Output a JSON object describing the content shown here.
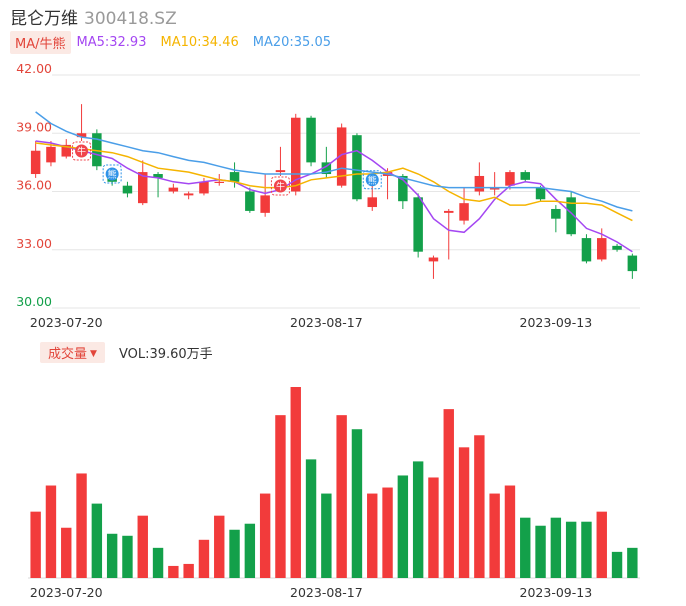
{
  "header": {
    "name": "昆仑万维",
    "code": "300418.SZ"
  },
  "ma_legend": {
    "tag": "MA/牛熊",
    "items": [
      {
        "label": "MA5:32.93",
        "color": "#a447f2"
      },
      {
        "label": "MA10:34.46",
        "color": "#f5b400"
      },
      {
        "label": "MA20:35.05",
        "color": "#4a9ee8"
      }
    ]
  },
  "volume_legend": {
    "tag": "成交量",
    "text": "VOL:39.60万手"
  },
  "colors": {
    "up": "#f23b3b",
    "down": "#13a04a",
    "price_axis": "#e2453a",
    "price_axis_low": "#13a04a",
    "grid": "#e6e6e6"
  },
  "markers": [
    {
      "type": "bull",
      "text": "牛",
      "index": 3
    },
    {
      "type": "bear",
      "text": "熊",
      "index": 5
    },
    {
      "type": "bull",
      "text": "牛",
      "index": 16
    },
    {
      "type": "bear",
      "text": "熊",
      "index": 22
    }
  ],
  "chart_data": [
    {
      "type": "candlestick",
      "ylim": [
        30,
        42
      ],
      "yticks": [
        "42.00",
        "39.00",
        "36.00",
        "33.00",
        "30.00"
      ],
      "xticks": [
        {
          "label": "2023-07-20",
          "index": 2
        },
        {
          "label": "2023-08-17",
          "index": 19
        },
        {
          "label": "2023-09-13",
          "index": 34
        }
      ],
      "candles": [
        {
          "o": 36.9,
          "c": 38.1,
          "h": 38.6,
          "l": 36.7
        },
        {
          "o": 37.5,
          "c": 38.3,
          "h": 38.6,
          "l": 37.3
        },
        {
          "o": 37.8,
          "c": 38.4,
          "h": 38.7,
          "l": 37.7
        },
        {
          "o": 38.8,
          "c": 39.0,
          "h": 40.5,
          "l": 38.6
        },
        {
          "o": 39.0,
          "c": 37.3,
          "h": 39.2,
          "l": 37.1
        },
        {
          "o": 36.7,
          "c": 36.5,
          "h": 36.8,
          "l": 36.3
        },
        {
          "o": 36.3,
          "c": 35.9,
          "h": 36.5,
          "l": 35.7
        },
        {
          "o": 35.4,
          "c": 37.0,
          "h": 37.6,
          "l": 35.3
        },
        {
          "o": 36.9,
          "c": 36.7,
          "h": 37.0,
          "l": 35.7
        },
        {
          "o": 36.0,
          "c": 36.2,
          "h": 36.4,
          "l": 35.9
        },
        {
          "o": 35.8,
          "c": 35.9,
          "h": 36.0,
          "l": 35.6
        },
        {
          "o": 35.9,
          "c": 36.5,
          "h": 36.7,
          "l": 35.8
        },
        {
          "o": 36.5,
          "c": 36.5,
          "h": 36.9,
          "l": 36.3
        },
        {
          "o": 37.0,
          "c": 36.5,
          "h": 37.5,
          "l": 36.2
        },
        {
          "o": 36.0,
          "c": 35.0,
          "h": 36.2,
          "l": 34.9
        },
        {
          "o": 34.9,
          "c": 35.8,
          "h": 36.9,
          "l": 34.7
        },
        {
          "o": 37.0,
          "c": 37.1,
          "h": 38.3,
          "l": 36.8
        },
        {
          "o": 36.0,
          "c": 39.8,
          "h": 40.0,
          "l": 35.8
        },
        {
          "o": 39.8,
          "c": 37.5,
          "h": 39.9,
          "l": 37.3
        },
        {
          "o": 37.5,
          "c": 36.9,
          "h": 38.3,
          "l": 36.7
        },
        {
          "o": 36.3,
          "c": 39.3,
          "h": 39.5,
          "l": 36.2
        },
        {
          "o": 38.9,
          "c": 35.6,
          "h": 39.0,
          "l": 35.5
        },
        {
          "o": 35.2,
          "c": 35.7,
          "h": 36.5,
          "l": 35.0
        },
        {
          "o": 36.8,
          "c": 37.0,
          "h": 37.2,
          "l": 35.6
        },
        {
          "o": 36.8,
          "c": 35.5,
          "h": 36.9,
          "l": 35.1
        },
        {
          "o": 35.7,
          "c": 32.9,
          "h": 35.9,
          "l": 32.6
        },
        {
          "o": 32.4,
          "c": 32.6,
          "h": 32.7,
          "l": 31.5
        },
        {
          "o": 34.9,
          "c": 35.0,
          "h": 35.1,
          "l": 32.5
        },
        {
          "o": 34.5,
          "c": 35.4,
          "h": 36.2,
          "l": 34.3
        },
        {
          "o": 36.0,
          "c": 36.8,
          "h": 37.5,
          "l": 35.8
        },
        {
          "o": 36.1,
          "c": 36.2,
          "h": 37.0,
          "l": 35.8
        },
        {
          "o": 36.3,
          "c": 37.0,
          "h": 37.1,
          "l": 36.1
        },
        {
          "o": 37.0,
          "c": 36.6,
          "h": 37.1,
          "l": 36.5
        },
        {
          "o": 36.2,
          "c": 35.6,
          "h": 36.3,
          "l": 35.5
        },
        {
          "o": 35.1,
          "c": 34.6,
          "h": 35.3,
          "l": 33.9
        },
        {
          "o": 35.7,
          "c": 33.8,
          "h": 36.0,
          "l": 33.7
        },
        {
          "o": 33.6,
          "c": 32.4,
          "h": 33.8,
          "l": 32.3
        },
        {
          "o": 32.5,
          "c": 33.6,
          "h": 34.1,
          "l": 32.4
        },
        {
          "o": 33.2,
          "c": 33.0,
          "h": 33.3,
          "l": 32.9
        },
        {
          "o": 32.7,
          "c": 31.9,
          "h": 32.8,
          "l": 31.5
        }
      ],
      "series": [
        {
          "name": "MA5",
          "color": "#a447f2",
          "values": [
            38.6,
            38.5,
            38.3,
            38.1,
            37.9,
            37.7,
            37.2,
            36.8,
            36.7,
            36.5,
            36.4,
            36.5,
            36.6,
            36.5,
            36.1,
            35.9,
            36.1,
            36.6,
            36.9,
            37.3,
            37.9,
            38.1,
            37.6,
            37.0,
            36.6,
            35.8,
            34.6,
            34.0,
            33.9,
            34.6,
            35.6,
            36.3,
            36.5,
            36.4,
            35.6,
            34.9,
            34.1,
            33.8,
            33.4,
            32.9
          ]
        },
        {
          "name": "MA10",
          "color": "#f5b400",
          "values": [
            38.5,
            38.4,
            38.3,
            38.2,
            38.1,
            38.0,
            37.8,
            37.5,
            37.2,
            37.1,
            37.0,
            36.8,
            36.6,
            36.5,
            36.3,
            36.2,
            36.2,
            36.3,
            36.6,
            36.7,
            36.8,
            36.9,
            36.9,
            37.0,
            37.2,
            36.9,
            36.5,
            36.0,
            35.6,
            35.5,
            35.7,
            35.3,
            35.3,
            35.5,
            35.5,
            35.4,
            35.4,
            35.3,
            34.9,
            34.5
          ]
        },
        {
          "name": "MA20",
          "color": "#4a9ee8",
          "values": [
            40.1,
            39.5,
            39.1,
            38.8,
            38.7,
            38.5,
            38.3,
            38.1,
            38.0,
            37.8,
            37.6,
            37.5,
            37.3,
            37.1,
            37.0,
            36.9,
            36.9,
            36.9,
            36.9,
            37.0,
            37.2,
            37.1,
            37.0,
            36.9,
            36.7,
            36.5,
            36.3,
            36.2,
            36.2,
            36.2,
            36.2,
            36.2,
            36.2,
            36.2,
            36.1,
            36.0,
            35.7,
            35.5,
            35.2,
            35.0
          ]
        }
      ]
    },
    {
      "type": "bar",
      "title": "成交量",
      "values": [
        3.3,
        4.6,
        2.5,
        5.2,
        3.7,
        2.2,
        2.1,
        3.1,
        1.5,
        0.6,
        0.7,
        1.9,
        3.1,
        2.4,
        2.7,
        4.2,
        8.1,
        9.5,
        5.9,
        4.2,
        8.1,
        7.4,
        4.2,
        4.5,
        5.1,
        5.8,
        5.0,
        8.4,
        6.5,
        7.1,
        4.2,
        4.6,
        3.0,
        2.6,
        3.0,
        2.8,
        2.8,
        3.3,
        1.3,
        1.5
      ],
      "colors_by_candle": true,
      "xticks": [
        {
          "label": "2023-07-20",
          "index": 2
        },
        {
          "label": "2023-08-17",
          "index": 19
        },
        {
          "label": "2023-09-13",
          "index": 34
        }
      ]
    }
  ]
}
